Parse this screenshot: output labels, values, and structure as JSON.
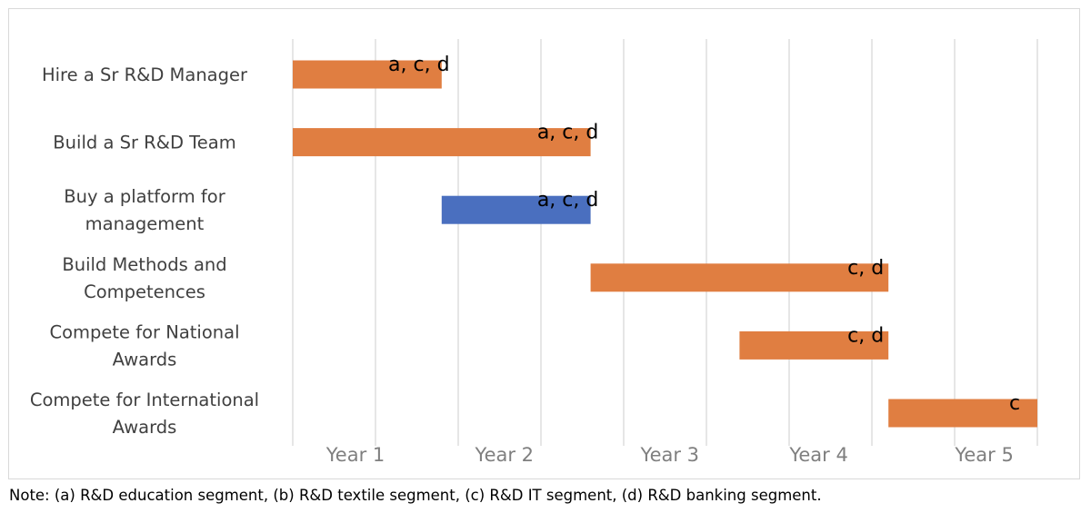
{
  "chart_data": {
    "type": "gantt",
    "x_unit": "year",
    "xlim": [
      0,
      5.1
    ],
    "x_ticks": [
      {
        "label": "Year 1",
        "value": 0.5
      },
      {
        "label": "Year 2",
        "value": 1.4
      },
      {
        "label": "Year 3",
        "value": 2.4
      },
      {
        "label": "Year 4",
        "value": 3.3
      },
      {
        "label": "Year 5",
        "value": 4.3
      }
    ],
    "grid_lines": [
      0,
      0.5,
      1.0,
      1.5,
      2.0,
      2.5,
      3.0,
      3.5,
      4.0,
      4.5,
      5.0
    ],
    "grid": true,
    "tasks": [
      {
        "label": [
          "Hire a Sr R&D Manager"
        ],
        "start": 0,
        "end": 0.9,
        "segments": "a, c, d",
        "color": "#e07e41"
      },
      {
        "label": [
          "Build a Sr R&D Team"
        ],
        "start": 0,
        "end": 1.8,
        "segments": "a, c, d",
        "color": "#e07e41"
      },
      {
        "label": [
          "Buy a platform for",
          "management"
        ],
        "start": 0.9,
        "end": 1.8,
        "segments": "a, c, d",
        "color": "#4a6fbf"
      },
      {
        "label": [
          "Build Methods and",
          "Competences"
        ],
        "start": 1.8,
        "end": 3.6,
        "segments": "c, d",
        "color": "#e07e41"
      },
      {
        "label": [
          "Compete for National",
          "Awards"
        ],
        "start": 2.7,
        "end": 3.6,
        "segments": "c, d",
        "color": "#e07e41"
      },
      {
        "label": [
          "Compete for International",
          "Awards"
        ],
        "start": 3.6,
        "end": 4.5,
        "segments": "c",
        "color": "#e07e41"
      }
    ]
  },
  "note": "Note: (a) R&D education segment, (b) R&D textile segment, (c) R&D IT segment, (d) R&D banking segment."
}
